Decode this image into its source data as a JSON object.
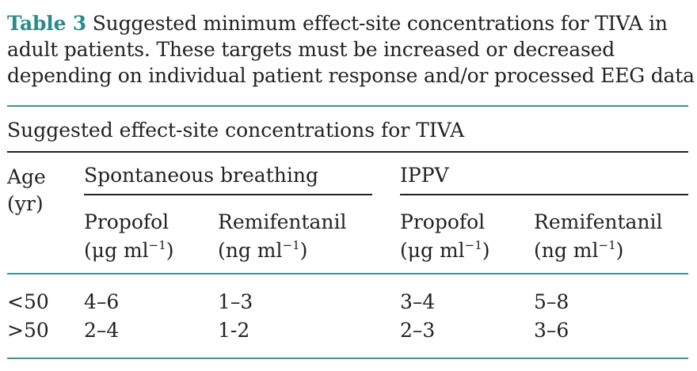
{
  "caption": {
    "label": "Table 3",
    "line1": " Suggested minimum effect-site concentrations for TIVA in",
    "line2": "adult patients. These targets must be increased or decreased",
    "line3": "depending on individual patient response and/or processed EEG data"
  },
  "table": {
    "title": "Suggested effect-site concentrations for TIVA",
    "age_header": {
      "line1": "Age",
      "line2": "(yr)"
    },
    "groups": [
      {
        "label": "Spontaneous breathing"
      },
      {
        "label": "IPPV"
      }
    ],
    "columns": [
      {
        "name": "Propofol",
        "unit_base": "(μg ml",
        "unit_exp": "−1",
        "unit_close": ")"
      },
      {
        "name": "Remifentanil",
        "unit_base": "(ng ml",
        "unit_exp": "−1",
        "unit_close": ")"
      },
      {
        "name": "Propofol",
        "unit_base": "(μg ml",
        "unit_exp": "−1",
        "unit_close": ")"
      },
      {
        "name": "Remifentanil",
        "unit_base": "(ng ml",
        "unit_exp": "−1",
        "unit_close": ")"
      }
    ],
    "rows": [
      {
        "age": "<50",
        "values": [
          "4–6",
          "1–3",
          "3–4",
          "5–8"
        ]
      },
      {
        "age": ">50",
        "values": [
          "2–4",
          "1-2",
          "2–3",
          "3–6"
        ]
      }
    ]
  }
}
